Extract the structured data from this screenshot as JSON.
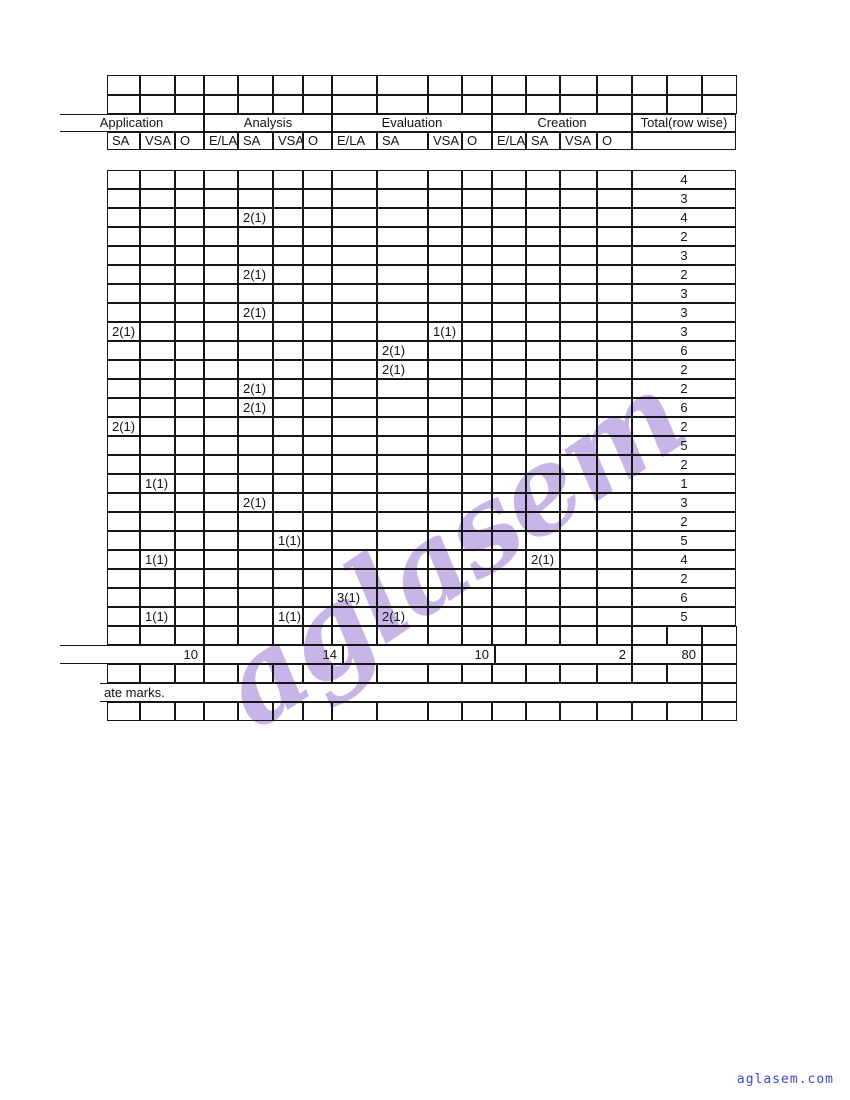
{
  "watermark": {
    "text": "aglasem",
    "color": "#c7b5e8"
  },
  "footer_link": {
    "label": "aglasem.com",
    "color": "#4343cd"
  },
  "table": {
    "group_headers": [
      "Application",
      "Analysis",
      "Evaluation",
      "Creation",
      "Total(row wise)"
    ],
    "sub_headers": [
      "SA",
      "VSA",
      "O",
      "E/LA",
      "SA",
      "VSA",
      "O",
      "E/LA",
      "SA",
      "VSA",
      "O",
      "E/LA",
      "SA",
      "VSA",
      "O",
      ""
    ],
    "data_rows": [
      [
        "",
        "",
        "",
        "",
        "",
        "",
        "",
        "",
        "",
        "",
        "",
        "",
        "",
        "",
        "",
        "4"
      ],
      [
        "",
        "",
        "",
        "",
        "",
        "",
        "",
        "",
        "",
        "",
        "",
        "",
        "",
        "",
        "",
        "3"
      ],
      [
        "",
        "",
        "",
        "",
        "2(1)",
        "",
        "",
        "",
        "",
        "",
        "",
        "",
        "",
        "",
        "",
        "4"
      ],
      [
        "",
        "",
        "",
        "",
        "",
        "",
        "",
        "",
        "",
        "",
        "",
        "",
        "",
        "",
        "",
        "2"
      ],
      [
        "",
        "",
        "",
        "",
        "",
        "",
        "",
        "",
        "",
        "",
        "",
        "",
        "",
        "",
        "",
        "3"
      ],
      [
        "",
        "",
        "",
        "",
        "2(1)",
        "",
        "",
        "",
        "",
        "",
        "",
        "",
        "",
        "",
        "",
        "2"
      ],
      [
        "",
        "",
        "",
        "",
        "",
        "",
        "",
        "",
        "",
        "",
        "",
        "",
        "",
        "",
        "",
        "3"
      ],
      [
        "",
        "",
        "",
        "",
        "2(1)",
        "",
        "",
        "",
        "",
        "",
        "",
        "",
        "",
        "",
        "",
        "3"
      ],
      [
        "2(1)",
        "",
        "",
        "",
        "",
        "",
        "",
        "",
        "",
        "1(1)",
        "",
        "",
        "",
        "",
        "",
        "3"
      ],
      [
        "",
        "",
        "",
        "",
        "",
        "",
        "",
        "",
        "2(1)",
        "",
        "",
        "",
        "",
        "",
        "",
        "6"
      ],
      [
        "",
        "",
        "",
        "",
        "",
        "",
        "",
        "",
        "2(1)",
        "",
        "",
        "",
        "",
        "",
        "",
        "2"
      ],
      [
        "",
        "",
        "",
        "",
        "2(1)",
        "",
        "",
        "",
        "",
        "",
        "",
        "",
        "",
        "",
        "",
        "2"
      ],
      [
        "",
        "",
        "",
        "",
        "2(1)",
        "",
        "",
        "",
        "",
        "",
        "",
        "",
        "",
        "",
        "",
        "6"
      ],
      [
        "2(1)",
        "",
        "",
        "",
        "",
        "",
        "",
        "",
        "",
        "",
        "",
        "",
        "",
        "",
        "",
        "2"
      ],
      [
        "",
        "",
        "",
        "",
        "",
        "",
        "",
        "",
        "",
        "",
        "",
        "",
        "",
        "",
        "",
        "5"
      ],
      [
        "",
        "",
        "",
        "",
        "",
        "",
        "",
        "",
        "",
        "",
        "",
        "",
        "",
        "",
        "",
        "2"
      ],
      [
        "",
        "1(1)",
        "",
        "",
        "",
        "",
        "",
        "",
        "",
        "",
        "",
        "",
        "",
        "",
        "",
        "1"
      ],
      [
        "",
        "",
        "",
        "",
        "2(1)",
        "",
        "",
        "",
        "",
        "",
        "",
        "",
        "",
        "",
        "",
        "3"
      ],
      [
        "",
        "",
        "",
        "",
        "",
        "",
        "",
        "",
        "",
        "",
        "",
        "",
        "",
        "",
        "",
        "2"
      ],
      [
        "",
        "",
        "",
        "",
        "",
        "1(1)",
        "",
        "",
        "",
        "",
        "",
        "",
        "",
        "",
        "",
        "5"
      ],
      [
        "",
        "1(1)",
        "",
        "",
        "",
        "",
        "",
        "",
        "",
        "",
        "",
        "",
        "2(1)",
        "",
        "",
        "4"
      ],
      [
        "",
        "",
        "",
        "",
        "",
        "",
        "",
        "",
        "",
        "",
        "",
        "",
        "",
        "",
        "",
        "2"
      ],
      [
        "",
        "",
        "",
        "",
        "",
        "",
        "",
        "3(1)",
        "",
        "",
        "",
        "",
        "",
        "",
        "",
        "6"
      ],
      [
        "",
        "1(1)",
        "",
        "",
        "",
        "1(1)",
        "",
        "",
        "2(1)",
        "",
        "",
        "",
        "",
        "",
        "",
        "5"
      ]
    ],
    "totals_row": [
      "10",
      "14",
      "10",
      "2",
      "80",
      ""
    ],
    "note": "ate marks."
  }
}
